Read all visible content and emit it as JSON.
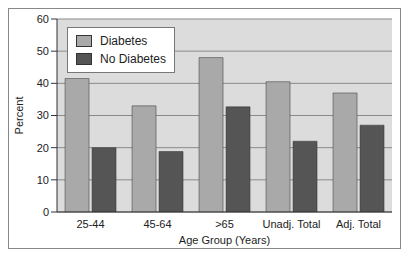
{
  "chart_data": {
    "type": "bar",
    "x_label": "Age Group (Years)",
    "y_label": "Percent",
    "categories": [
      "25-44",
      "45-64",
      ">65",
      "Unadj. Total",
      "Adj. Total"
    ],
    "series": [
      {
        "name": "Diabetes",
        "color": "#a9a9a9",
        "values": [
          41.5,
          33,
          48,
          40.5,
          37
        ]
      },
      {
        "name": "No Diabetes",
        "color": "#555555",
        "values": [
          20,
          18.8,
          32.7,
          22,
          27
        ]
      }
    ],
    "ylim": [
      0,
      60
    ],
    "yticks": [
      0,
      10,
      20,
      30,
      40,
      50,
      60
    ],
    "grid": true,
    "legend": "upper left"
  }
}
